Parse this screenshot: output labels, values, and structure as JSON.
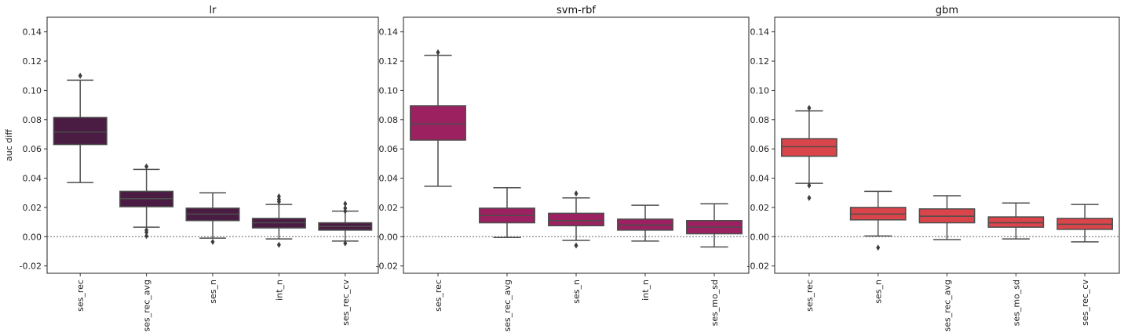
{
  "chart_data": [
    {
      "type": "box",
      "title": "lr",
      "ylabel": "auc diff",
      "ylim": [
        -0.025,
        0.15
      ],
      "yticks": [
        "-0.02",
        "0.00",
        "0.02",
        "0.04",
        "0.06",
        "0.08",
        "0.10",
        "0.12",
        "0.14"
      ],
      "reference_line": 0,
      "color": "#4a1c43",
      "categories": [
        "ses_rec",
        "ses_rec_avg",
        "ses_n",
        "int_n",
        "ses_rec_cv"
      ],
      "boxes": [
        {
          "whisker_low": 0.037,
          "q1": 0.063,
          "median": 0.0715,
          "q3": 0.0815,
          "whisker_high": 0.107,
          "outliers": [
            0.11
          ]
        },
        {
          "whisker_low": 0.0065,
          "q1": 0.0205,
          "median": 0.026,
          "q3": 0.031,
          "whisker_high": 0.046,
          "outliers": [
            0.048,
            0.0045,
            0.003,
            0.0005
          ]
        },
        {
          "whisker_low": -0.001,
          "q1": 0.011,
          "median": 0.0155,
          "q3": 0.0195,
          "whisker_high": 0.03,
          "outliers": [
            -0.0035
          ]
        },
        {
          "whisker_low": -0.0015,
          "q1": 0.006,
          "median": 0.0095,
          "q3": 0.0125,
          "whisker_high": 0.022,
          "outliers": [
            0.0275,
            0.0255,
            0.024,
            -0.0055
          ]
        },
        {
          "whisker_low": -0.003,
          "q1": 0.0045,
          "median": 0.007,
          "q3": 0.0095,
          "whisker_high": 0.0175,
          "outliers": [
            0.0225,
            0.0195,
            0.0175,
            -0.0045
          ]
        }
      ]
    },
    {
      "type": "box",
      "title": "svm-rbf",
      "ylabel": "",
      "ylim": [
        -0.025,
        0.15
      ],
      "yticks": [
        "-0.02",
        "0.00",
        "0.02",
        "0.04",
        "0.06",
        "0.08",
        "0.10",
        "0.12",
        "0.14"
      ],
      "reference_line": 0,
      "color": "#9b2160",
      "categories": [
        "ses_rec",
        "ses_rec_avg",
        "ses_n",
        "int_n",
        "ses_mo_sd"
      ],
      "boxes": [
        {
          "whisker_low": 0.0345,
          "q1": 0.066,
          "median": 0.077,
          "q3": 0.0895,
          "whisker_high": 0.124,
          "outliers": [
            0.126
          ]
        },
        {
          "whisker_low": -0.0005,
          "q1": 0.0095,
          "median": 0.0145,
          "q3": 0.0195,
          "whisker_high": 0.0335,
          "outliers": []
        },
        {
          "whisker_low": -0.0025,
          "q1": 0.0075,
          "median": 0.011,
          "q3": 0.016,
          "whisker_high": 0.0265,
          "outliers": [
            0.0295,
            -0.006
          ]
        },
        {
          "whisker_low": -0.003,
          "q1": 0.0045,
          "median": 0.008,
          "q3": 0.012,
          "whisker_high": 0.0215,
          "outliers": []
        },
        {
          "whisker_low": -0.007,
          "q1": 0.002,
          "median": 0.0065,
          "q3": 0.011,
          "whisker_high": 0.0225,
          "outliers": []
        }
      ]
    },
    {
      "type": "box",
      "title": "gbm",
      "ylabel": "",
      "ylim": [
        -0.025,
        0.15
      ],
      "yticks": [
        "-0.02",
        "0.00",
        "0.02",
        "0.04",
        "0.06",
        "0.08",
        "0.10",
        "0.12",
        "0.14"
      ],
      "reference_line": 0,
      "color": "#d9454a",
      "categories": [
        "ses_rec",
        "ses_n",
        "ses_rec_avg",
        "ses_mo_sd",
        "ses_rec_cv"
      ],
      "boxes": [
        {
          "whisker_low": 0.0365,
          "q1": 0.055,
          "median": 0.0615,
          "q3": 0.067,
          "whisker_high": 0.086,
          "outliers": [
            0.088,
            0.035,
            0.0265
          ]
        },
        {
          "whisker_low": 0.0005,
          "q1": 0.0115,
          "median": 0.0155,
          "q3": 0.02,
          "whisker_high": 0.031,
          "outliers": [
            -0.0075
          ]
        },
        {
          "whisker_low": -0.002,
          "q1": 0.0095,
          "median": 0.014,
          "q3": 0.019,
          "whisker_high": 0.028,
          "outliers": []
        },
        {
          "whisker_low": -0.0015,
          "q1": 0.0065,
          "median": 0.0095,
          "q3": 0.0135,
          "whisker_high": 0.023,
          "outliers": []
        },
        {
          "whisker_low": -0.0035,
          "q1": 0.005,
          "median": 0.0085,
          "q3": 0.0125,
          "whisker_high": 0.022,
          "outliers": []
        }
      ]
    }
  ]
}
